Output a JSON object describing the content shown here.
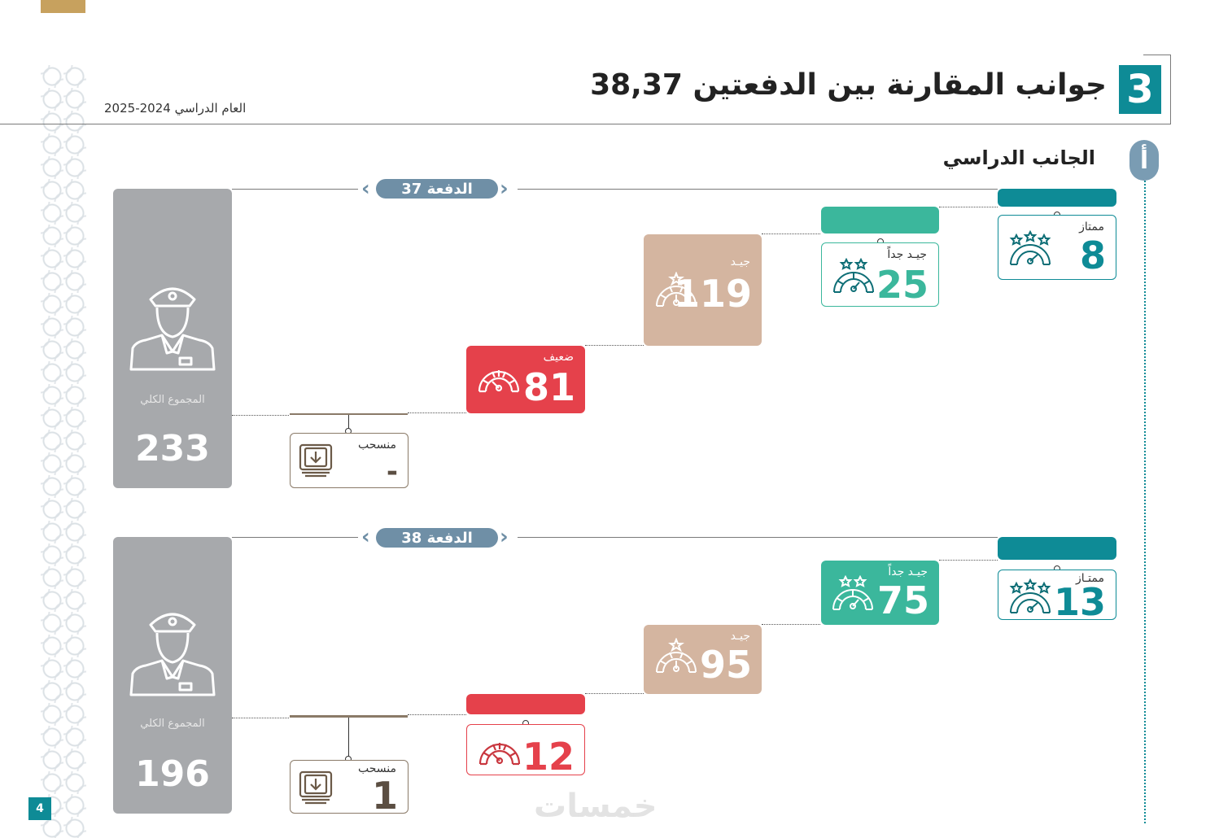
{
  "header": {
    "section_number": "3",
    "title": "جوانب المقارنة بين الدفعتين 38,37",
    "academic_year": "العام الدراسي 2024-2025"
  },
  "subsection": {
    "badge": "أ",
    "title": "الجانب الدراسي"
  },
  "page_number": "4",
  "watermark": "خمسات",
  "batch37": {
    "label": "الدفعة 37",
    "total_label": "المجموع الكلي",
    "total_value": "233",
    "excellent": {
      "label": "ممتاز",
      "value": "8"
    },
    "very_good": {
      "label": "جيـد جداً",
      "value": "25"
    },
    "good": {
      "label": "جيـد",
      "value": "119"
    },
    "weak": {
      "label": "ضعيف",
      "value": "81"
    },
    "withdrawn": {
      "label": "منسحب",
      "value": "-"
    }
  },
  "batch38": {
    "label": "الدفعة 38",
    "total_label": "المجموع الكلي",
    "total_value": "196",
    "excellent": {
      "label": "ممتـاز",
      "value": "13"
    },
    "very_good": {
      "label": "جيـد جداً",
      "value": "75"
    },
    "good": {
      "label": "جيـد",
      "value": "95"
    },
    "weak": {
      "label": "",
      "value": "12"
    },
    "withdrawn": {
      "label": "منسحب",
      "value": "1"
    }
  },
  "colors": {
    "teal_dark": "#0e8b96",
    "teal_light": "#3bb79c",
    "beige": "#d4b5a0",
    "red": "#e5414b",
    "gray_total": "#a7a9ac",
    "pill": "#6f8fa6",
    "brown_outline": "#8a7a68"
  }
}
